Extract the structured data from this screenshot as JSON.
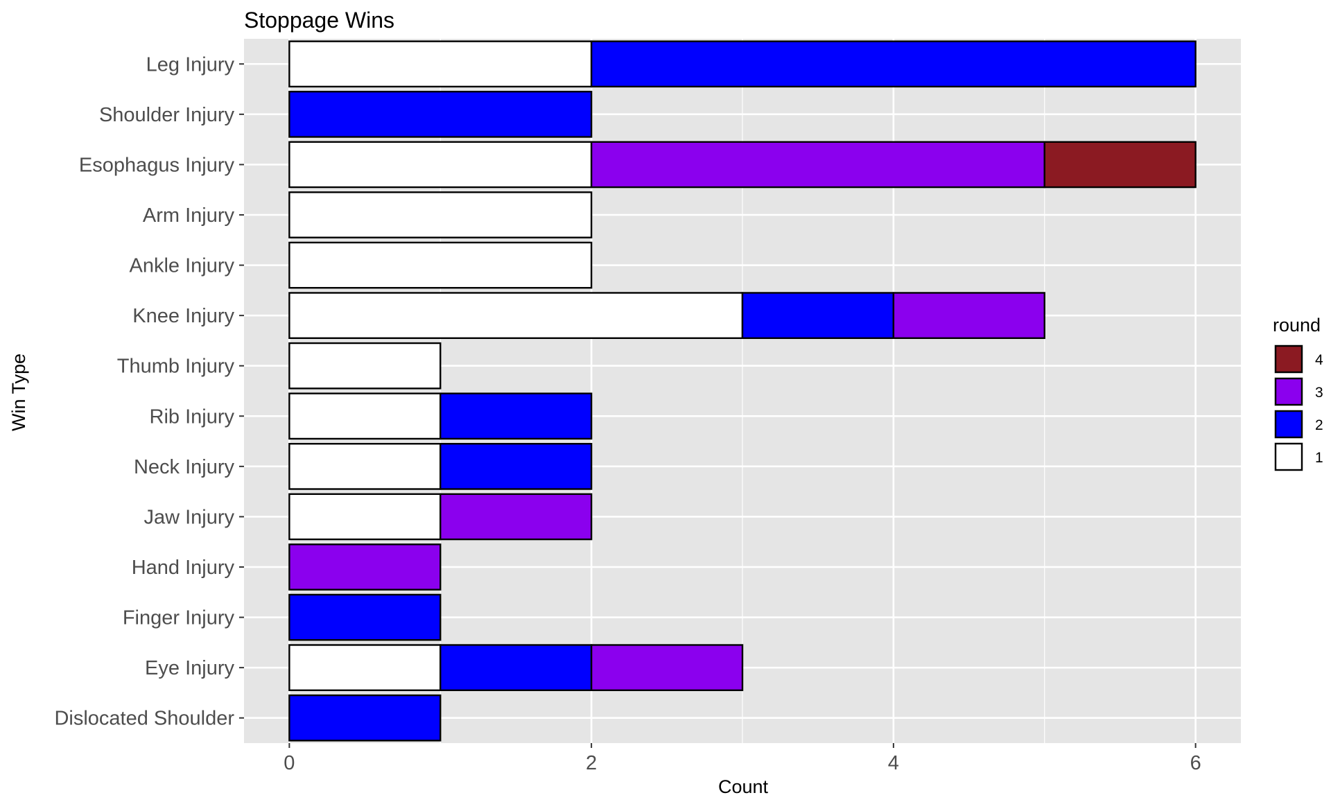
{
  "chart_data": {
    "type": "bar",
    "orientation": "horizontal",
    "stacked": true,
    "title": "Stoppage Wins",
    "xlabel": "Count",
    "ylabel": "Win Type",
    "xlim": [
      -0.3,
      6.3
    ],
    "x_ticks": [
      0,
      2,
      4,
      6
    ],
    "grid": true,
    "legend_position": "right",
    "legend_title": "round",
    "categories": [
      "Leg Injury",
      "Shoulder Injury",
      "Esophagus Injury",
      "Arm Injury",
      "Ankle Injury",
      "Knee Injury",
      "Thumb Injury",
      "Rib Injury",
      "Neck Injury",
      "Jaw Injury",
      "Hand Injury",
      "Finger Injury",
      "Eye Injury",
      "Dislocated Shoulder"
    ],
    "series": [
      {
        "name": "1",
        "color": "#ffffff",
        "values": [
          2,
          0,
          2,
          2,
          2,
          3,
          1,
          1,
          1,
          1,
          0,
          0,
          1,
          0
        ]
      },
      {
        "name": "2",
        "color": "#0000ff",
        "values": [
          4,
          2,
          0,
          0,
          0,
          1,
          0,
          1,
          1,
          0,
          0,
          1,
          1,
          1
        ]
      },
      {
        "name": "3",
        "color": "#8b00ee",
        "values": [
          0,
          0,
          3,
          0,
          0,
          1,
          0,
          0,
          0,
          1,
          1,
          0,
          1,
          0
        ]
      },
      {
        "name": "4",
        "color": "#8b1a22",
        "values": [
          0,
          0,
          1,
          0,
          0,
          0,
          0,
          0,
          0,
          0,
          0,
          0,
          0,
          0
        ]
      }
    ],
    "legend_order": [
      "4",
      "3",
      "2",
      "1"
    ]
  },
  "colors": {
    "panel_background": "#e5e5e5",
    "grid_line": "#ffffff",
    "bar_outline": "#000000"
  }
}
